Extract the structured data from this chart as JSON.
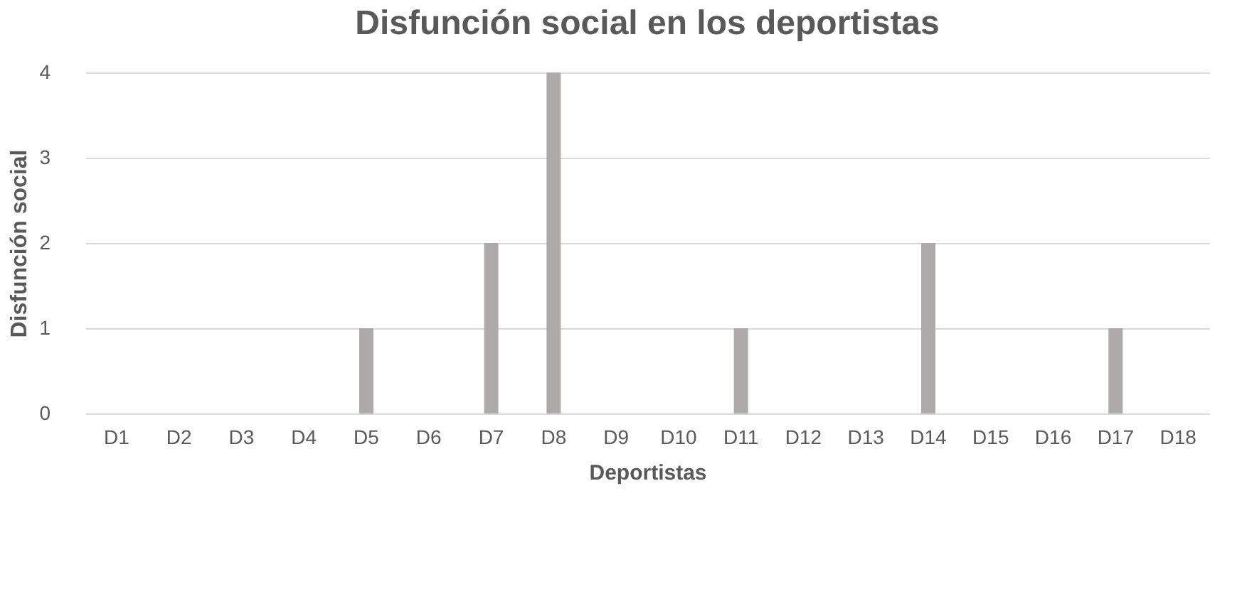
{
  "chart_data": {
    "type": "bar",
    "title": "Disfunción social en los deportistas",
    "xlabel": "Deportistas",
    "ylabel": "Disfunción social",
    "categories": [
      "D1",
      "D2",
      "D3",
      "D4",
      "D5",
      "D6",
      "D7",
      "D8",
      "D9",
      "D10",
      "D11",
      "D12",
      "D13",
      "D14",
      "D15",
      "D16",
      "D17",
      "D18"
    ],
    "values": [
      0,
      0,
      0,
      0,
      1,
      0,
      2,
      4,
      0,
      0,
      1,
      0,
      0,
      2,
      0,
      0,
      1,
      0
    ],
    "color": "#aeaaaa",
    "ylim": [
      0,
      4
    ],
    "yticks": [
      0,
      1,
      2,
      3,
      4
    ],
    "grid": "y"
  }
}
